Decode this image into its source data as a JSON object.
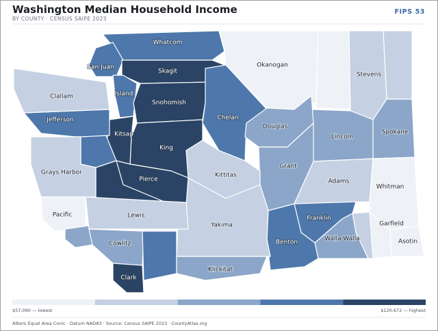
{
  "header": {
    "title": "Washington Median Household Income",
    "subtitle": "BY COUNTY · CENSUS SAIPE 2023",
    "badge": "FIPS 53"
  },
  "counties": [
    {
      "name": "Whatcom",
      "class": 4
    },
    {
      "name": "San Juan",
      "class": 4
    },
    {
      "name": "Skagit",
      "class": 5
    },
    {
      "name": "Island",
      "class": 4
    },
    {
      "name": "Snohomish",
      "class": 5
    },
    {
      "name": "Chelan",
      "class": 4
    },
    {
      "name": "Okanogan",
      "class": 1
    },
    {
      "name": null,
      "class": 1
    },
    {
      "name": "Stevens",
      "class": 2
    },
    {
      "name": null,
      "class": 2
    },
    {
      "name": "Spokane",
      "class": 3
    },
    {
      "name": "Lincoln",
      "class": 3
    },
    {
      "name": "Douglas",
      "class": 3
    },
    {
      "name": "Grant",
      "class": 3
    },
    {
      "name": "Adams",
      "class": 2
    },
    {
      "name": "Whitman",
      "class": 1
    },
    {
      "name": "Garfield",
      "class": 1
    },
    {
      "name": "Asotin",
      "class": 1
    },
    {
      "name": null,
      "class": 2
    },
    {
      "name": "Walla Walla",
      "class": 3
    },
    {
      "name": "Franklin",
      "class": 4
    },
    {
      "name": "Benton",
      "class": 4
    },
    {
      "name": "Yakima",
      "class": 2
    },
    {
      "name": "Kittitas",
      "class": 2
    },
    {
      "name": "King",
      "class": 5
    },
    {
      "name": "Pierce",
      "class": 5
    },
    {
      "name": "Kitsap",
      "class": 5
    },
    {
      "name": null,
      "class": 4
    },
    {
      "name": null,
      "class": 5
    },
    {
      "name": "Jefferson",
      "class": 4
    },
    {
      "name": "Clallam",
      "class": 2
    },
    {
      "name": "Grays Harbor",
      "class": 2
    },
    {
      "name": "Pacific",
      "class": 1
    },
    {
      "name": null,
      "class": 3
    },
    {
      "name": "Lewis",
      "class": 2
    },
    {
      "name": "Cowlitz",
      "class": 3
    },
    {
      "name": null,
      "class": 4
    },
    {
      "name": "Clark",
      "class": 5
    },
    {
      "name": "Klickitat",
      "class": 3
    }
  ],
  "legend": {
    "colors": [
      "#eef1f6",
      "#c5d1e2",
      "#8ba6c9",
      "#4e78ab",
      "#2b4465"
    ],
    "low_label": "$57,090 — lowest",
    "high_label": "$120,672 — highest"
  },
  "footer": "Albers Equal Area Conic · Datum NAD83 · Source: Census SAIPE 2023 · CountyAtlas.org"
}
